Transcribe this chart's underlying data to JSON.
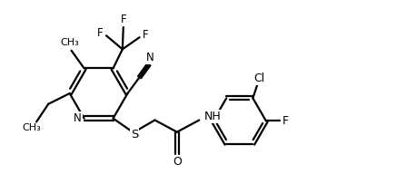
{
  "background_color": "#ffffff",
  "line_color": "#000000",
  "line_width": 1.6,
  "font_size": 8.5,
  "figsize": [
    4.47,
    1.92
  ],
  "dpi": 100,
  "xlim": [
    0.0,
    9.5
  ],
  "ylim": [
    0.0,
    4.0
  ]
}
